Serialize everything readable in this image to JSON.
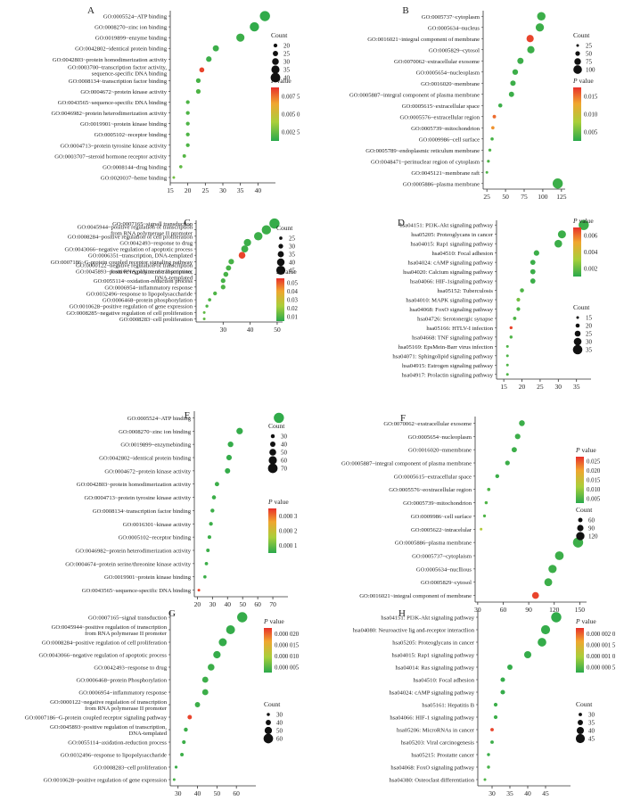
{
  "figure": {
    "pvalue_label": "P value",
    "count_label": "Count",
    "gradient_colors": [
      "#e8302b",
      "#f0a62f",
      "#a9cf3a",
      "#2aa94b"
    ]
  },
  "chart_data": [
    {
      "panel": "A",
      "type": "scatter",
      "terms": [
        "GO:0005524~ATP binding",
        "GO:0008270~zinc ion binding",
        "GO:0019899~enzyme binding",
        "GO:0042802~identical protein binding",
        "GO:0042803~protein homodimerization activity",
        "GO:0003700~transcription factor activity, sequence-specific DNA binding",
        "GO:0008134~transcription factor binding",
        "GO:0004672~protein kinase activity",
        "GO:0043565~sequence-specific DNA binding",
        "GO:0046982~protein heterodimerization activity",
        "GO:0019901~protein kinase binding",
        "GO:0005102~receptor binding",
        "GO:0004713~protein tyrosine kinase activity",
        "GO:0003707~steroid hormone receptor activity",
        "GO:0008144~drug binding",
        "GO:0020037~heme binding"
      ],
      "counts": [
        42,
        39,
        35,
        28,
        26,
        24,
        23,
        23,
        20,
        20,
        20,
        20,
        20,
        19,
        18,
        16
      ],
      "color_fraction": [
        0.02,
        0.02,
        0.05,
        0.05,
        0.05,
        0.95,
        0.08,
        0.1,
        0.1,
        0.1,
        0.1,
        0.1,
        0.1,
        0.12,
        0.15,
        0.2
      ],
      "xlim": [
        15,
        45
      ],
      "xticks": [
        15,
        20,
        25,
        30,
        35,
        40
      ],
      "pvalue_ticks": [
        "0.007 5",
        "0.005 0",
        "0.002 5"
      ],
      "count_ticks": [
        "20",
        "25",
        "30",
        "35",
        "40"
      ]
    },
    {
      "panel": "B",
      "type": "scatter",
      "terms": [
        "GO:0005737~cytoplasm",
        "GO:0005634~nucleus",
        "GO:0016021~integral component of membrane",
        "GO:0005829~cytosol",
        "GO:0070062~extracellular exosome",
        "GO:0005654~nucleoplasm",
        "GO:0016020~membrane",
        "GO:0005887~integral component of plasma membrane",
        "GO:0005615~extracellular space",
        "GO:0005576~extracellular region",
        "GO:0005739~mitochondrion",
        "GO:0009986~cell surface",
        "GO:0005789~endoplasmic reticulum membrane",
        "GO:0048471~perinuclear region of cytoplasm",
        "GO:0045121~membrane raft",
        "GO:0005886~plasma membrane"
      ],
      "counts": [
        98,
        96,
        83,
        84,
        70,
        63,
        60,
        58,
        43,
        35,
        33,
        32,
        29,
        27,
        25,
        120
      ],
      "color_fraction": [
        0.05,
        0.05,
        0.95,
        0.05,
        0.05,
        0.05,
        0.05,
        0.05,
        0.05,
        0.85,
        0.75,
        0.08,
        0.1,
        0.1,
        0.1,
        0.05
      ],
      "xlim": [
        20,
        130
      ],
      "xticks": [
        25,
        50,
        75,
        100,
        125
      ],
      "pvalue_ticks": [
        "0.015",
        "0.010",
        "0.005"
      ],
      "count_ticks": [
        "25",
        "50",
        "75",
        "100"
      ]
    },
    {
      "panel": "C",
      "type": "scatter",
      "terms": [
        "GO:0007165~signall transduction",
        "GO:0045944~positive regulation of transcription from RNA polymerase II promoter",
        "GO:0008284~positive regulation of cell proliferation",
        "GO:0042493~response to drug",
        "GO:0043066~negative regulation of apoptotic process",
        "GO:0006351~transcription, DNA-templated",
        "GO:0007186~G-protein coupled receptor signaling pathway",
        "GO:0000122~negative regulation of transcription from RNA polymerase II promoter",
        "GO:0045893~positive regulation of transcription, DNA-templated",
        "GO:0055114~oxidation-reduction process",
        "GO:0006954~inflammatory response",
        "GO:0032496~response to lipopolysaccharide",
        "GO:0006468~protein phosphorylation",
        "GO:0010628~positive regulation of gene expression",
        "GO:0008285~negative regulation of cell proliferation",
        "GO:0008283~cell proliferation"
      ],
      "counts": [
        49,
        46,
        43,
        39,
        38,
        37,
        33,
        32,
        31,
        30,
        30,
        27,
        25,
        24,
        23,
        23
      ],
      "color_fraction": [
        0.03,
        0.05,
        0.05,
        0.05,
        0.05,
        0.95,
        0.08,
        0.08,
        0.08,
        0.08,
        0.1,
        0.1,
        0.1,
        0.1,
        0.15,
        0.15
      ],
      "xlim": [
        20,
        52
      ],
      "xticks": [
        30,
        40,
        50
      ],
      "pvalue_ticks": [
        "0.05",
        "0.04",
        "0.03",
        "0.02",
        "0.01"
      ],
      "count_ticks": [
        "25",
        "30",
        "35",
        "40",
        "45"
      ]
    },
    {
      "panel": "D",
      "type": "scatter",
      "terms": [
        "hsa04151: PI3K-Akt signaling pathway",
        "hsa05205: Proteoglycans in cancer",
        "hsa04015: Rap1 signaling pathway",
        "hsa04510: Focal adhesion",
        "hsa04024: cAMP signaling pathway",
        "hsa04020: Calcium signaling pathway",
        "hsa04066: HIF-1signaling pathway",
        "hsa05152: Tuberculosis",
        "hsa04010: MAPK signaling pathway",
        "hsa04068: FoxO signaling pathway",
        "hsa04726: Serotonergic synapse",
        "hsa05166: HTLV-I infection",
        "hsa04668: TNF signaling pathway",
        "hsa05169: EpsMein-Barr virus infection",
        "hsa04071: Sphingolipid signaling pathway",
        "hsa04915: Estrogen signaling pathway",
        "hsa04917: Prolactin signaling pathway"
      ],
      "counts": [
        37,
        31,
        30,
        24,
        23,
        23,
        23,
        20,
        19,
        19,
        18,
        17,
        17,
        16,
        16,
        16,
        16
      ],
      "color_fraction": [
        0.05,
        0.05,
        0.05,
        0.05,
        0.05,
        0.05,
        0.05,
        0.1,
        0.2,
        0.1,
        0.1,
        0.95,
        0.1,
        0.1,
        0.1,
        0.1,
        0.1
      ],
      "xlim": [
        13,
        39
      ],
      "xticks": [
        15,
        20,
        25,
        30,
        35
      ],
      "pvalue_ticks": [
        "0.006",
        "0.004",
        "0.002"
      ],
      "count_ticks": [
        "15",
        "20",
        "25",
        "30",
        "35"
      ]
    },
    {
      "panel": "E",
      "type": "scatter",
      "terms": [
        "GO:0005524~ATP binding",
        "GO:0008270~zinc ion binding",
        "GO:0019899~enzymebinding",
        "GO:0042802~identical protein binding",
        "GO:0004672~protein kinase activity",
        "GO:0042803~protein homodimerization activity",
        "GO:0004713~protein tyrosine kinase activity",
        "GO:0008134~transcription factor binding",
        "GO:0016301~kinase activity",
        "GO:0005102~receptor binding",
        "GO:0046982~protein heterodimerization activity",
        "GO:0004674~protein serine/threonine kinase activity",
        "GO:0019901~protein kinase binding",
        "GO:0043565~sequence-specific DNA binding"
      ],
      "counts": [
        74,
        48,
        42,
        41,
        40,
        33,
        31,
        30,
        29,
        28,
        27,
        26,
        25,
        21
      ],
      "color_fraction": [
        0.02,
        0.03,
        0.03,
        0.03,
        0.03,
        0.05,
        0.05,
        0.05,
        0.05,
        0.05,
        0.05,
        0.05,
        0.05,
        0.95
      ],
      "xlim": [
        18,
        80
      ],
      "xticks": [
        20,
        30,
        40,
        50,
        60,
        70
      ],
      "pvalue_ticks": [
        "0.000 3",
        "0.000 2",
        "0.000 1"
      ],
      "count_ticks": [
        "30",
        "40",
        "50",
        "60",
        "70"
      ]
    },
    {
      "panel": "F",
      "type": "scatter",
      "terms": [
        "GO:0070062~exstracellular exosome",
        "GO:0005654~nucleoplasm",
        "GO:0016020~mmembrane",
        "GO:0005887~integral component of plasma membrane",
        "GO:0005615~extracellular space",
        "GO:0005576~eoxtracellular region",
        "GO:0005739~mitochondrion",
        "GO:0009986~cell surface",
        "GO:0005622~intracelular",
        "GO:0005886~plasma membrane",
        "GO:0005737~cytoplaism",
        "GO:0005634~nucllious",
        "GO:0005829~cytosol",
        "GO:0016021~integral component of membrane"
      ],
      "counts": [
        82,
        77,
        73,
        65,
        53,
        43,
        40,
        38,
        34,
        148,
        126,
        118,
        113,
        98
      ],
      "color_fraction": [
        0.05,
        0.05,
        0.05,
        0.05,
        0.05,
        0.1,
        0.1,
        0.1,
        0.4,
        0.05,
        0.05,
        0.05,
        0.05,
        0.95
      ],
      "xlim": [
        27,
        158
      ],
      "xticks": [
        30,
        60,
        90,
        120,
        150
      ],
      "pvalue_ticks": [
        "0.025",
        "0.020",
        "0.015",
        "0.010",
        "0.005"
      ],
      "count_ticks": [
        "60",
        "90",
        "120"
      ]
    },
    {
      "panel": "G",
      "type": "scatter",
      "terms": [
        "GO:0007165~signal transduction",
        "GO:0045944~positive regulation of transcription from RNA polymerase II promoter",
        "GO:0008284~positive regulation of cell proliferation",
        "GO:0043066~negative regulation of apoptotic process",
        "GO:0042493~response to drug",
        "GO:0006468~protein Phosphorylation",
        "GO:0006954~inflammatory response",
        "GO:0000122~negative regulation of transcription from RNA polymerase II promoter",
        "GO:0007186~G-protein coupled receptor signaling pathway",
        "GO:0045893~positive regulation of transcription, DNA-templated",
        "GO:0055114~axidation-reduction process",
        "GO:0032496~response to lipopolysaccharide",
        "GO:0008283~cell proliferation",
        "GO:0010628~positive regulation of gene expression"
      ],
      "counts": [
        63,
        57,
        53,
        50,
        47,
        44,
        44,
        40,
        36,
        34,
        33,
        32,
        29,
        28
      ],
      "color_fraction": [
        0.03,
        0.03,
        0.03,
        0.03,
        0.05,
        0.05,
        0.05,
        0.05,
        0.95,
        0.05,
        0.05,
        0.05,
        0.05,
        0.08
      ],
      "xlim": [
        26,
        70
      ],
      "xticks": [
        30,
        40,
        50,
        60
      ],
      "pvalue_ticks": [
        "0.000 020",
        "0.000 015",
        "0.000 010",
        "0.000 005"
      ],
      "count_ticks": [
        "30",
        "40",
        "50",
        "60"
      ]
    },
    {
      "panel": "H",
      "type": "scatter",
      "terms": [
        "hsa04151: PI3K-Akt signaling pathway",
        "hsa04080: Neuroactive lig and-receptor interactlion",
        "hsa05205: Proteoglycans in cancer",
        "hsa04015: Rap1 signaling pathway",
        "hsa04014: Ras signaling pathway",
        "hsa04510: Focal adhesion",
        "hsa04024: cAMP signaling pathway",
        "hsa05161: Hepatitis B",
        "hsa04066: HIF-1 signaling pathway",
        "hsa05206: MicroRNAs in cancer",
        "hsa05203: Viral carcinogenesis",
        "hsa05215: Prostatte cancer",
        "hsa04068: FoxO signaling pathway",
        "hsa04380: Osteoclast differentiation"
      ],
      "counts": [
        48,
        45,
        44,
        40,
        35,
        33,
        33,
        31,
        31,
        30,
        30,
        29,
        29,
        28
      ],
      "color_fraction": [
        0.02,
        0.03,
        0.03,
        0.03,
        0.03,
        0.03,
        0.03,
        0.05,
        0.05,
        0.95,
        0.05,
        0.05,
        0.08,
        0.1
      ],
      "xlim": [
        26,
        52
      ],
      "xticks": [
        30,
        35,
        40,
        45
      ],
      "pvalue_ticks": [
        "0.000 002 0",
        "0.000 001 5",
        "0.000 001 0",
        "0.000 000 5"
      ],
      "count_ticks": [
        "30",
        "35",
        "40",
        "45"
      ]
    }
  ]
}
